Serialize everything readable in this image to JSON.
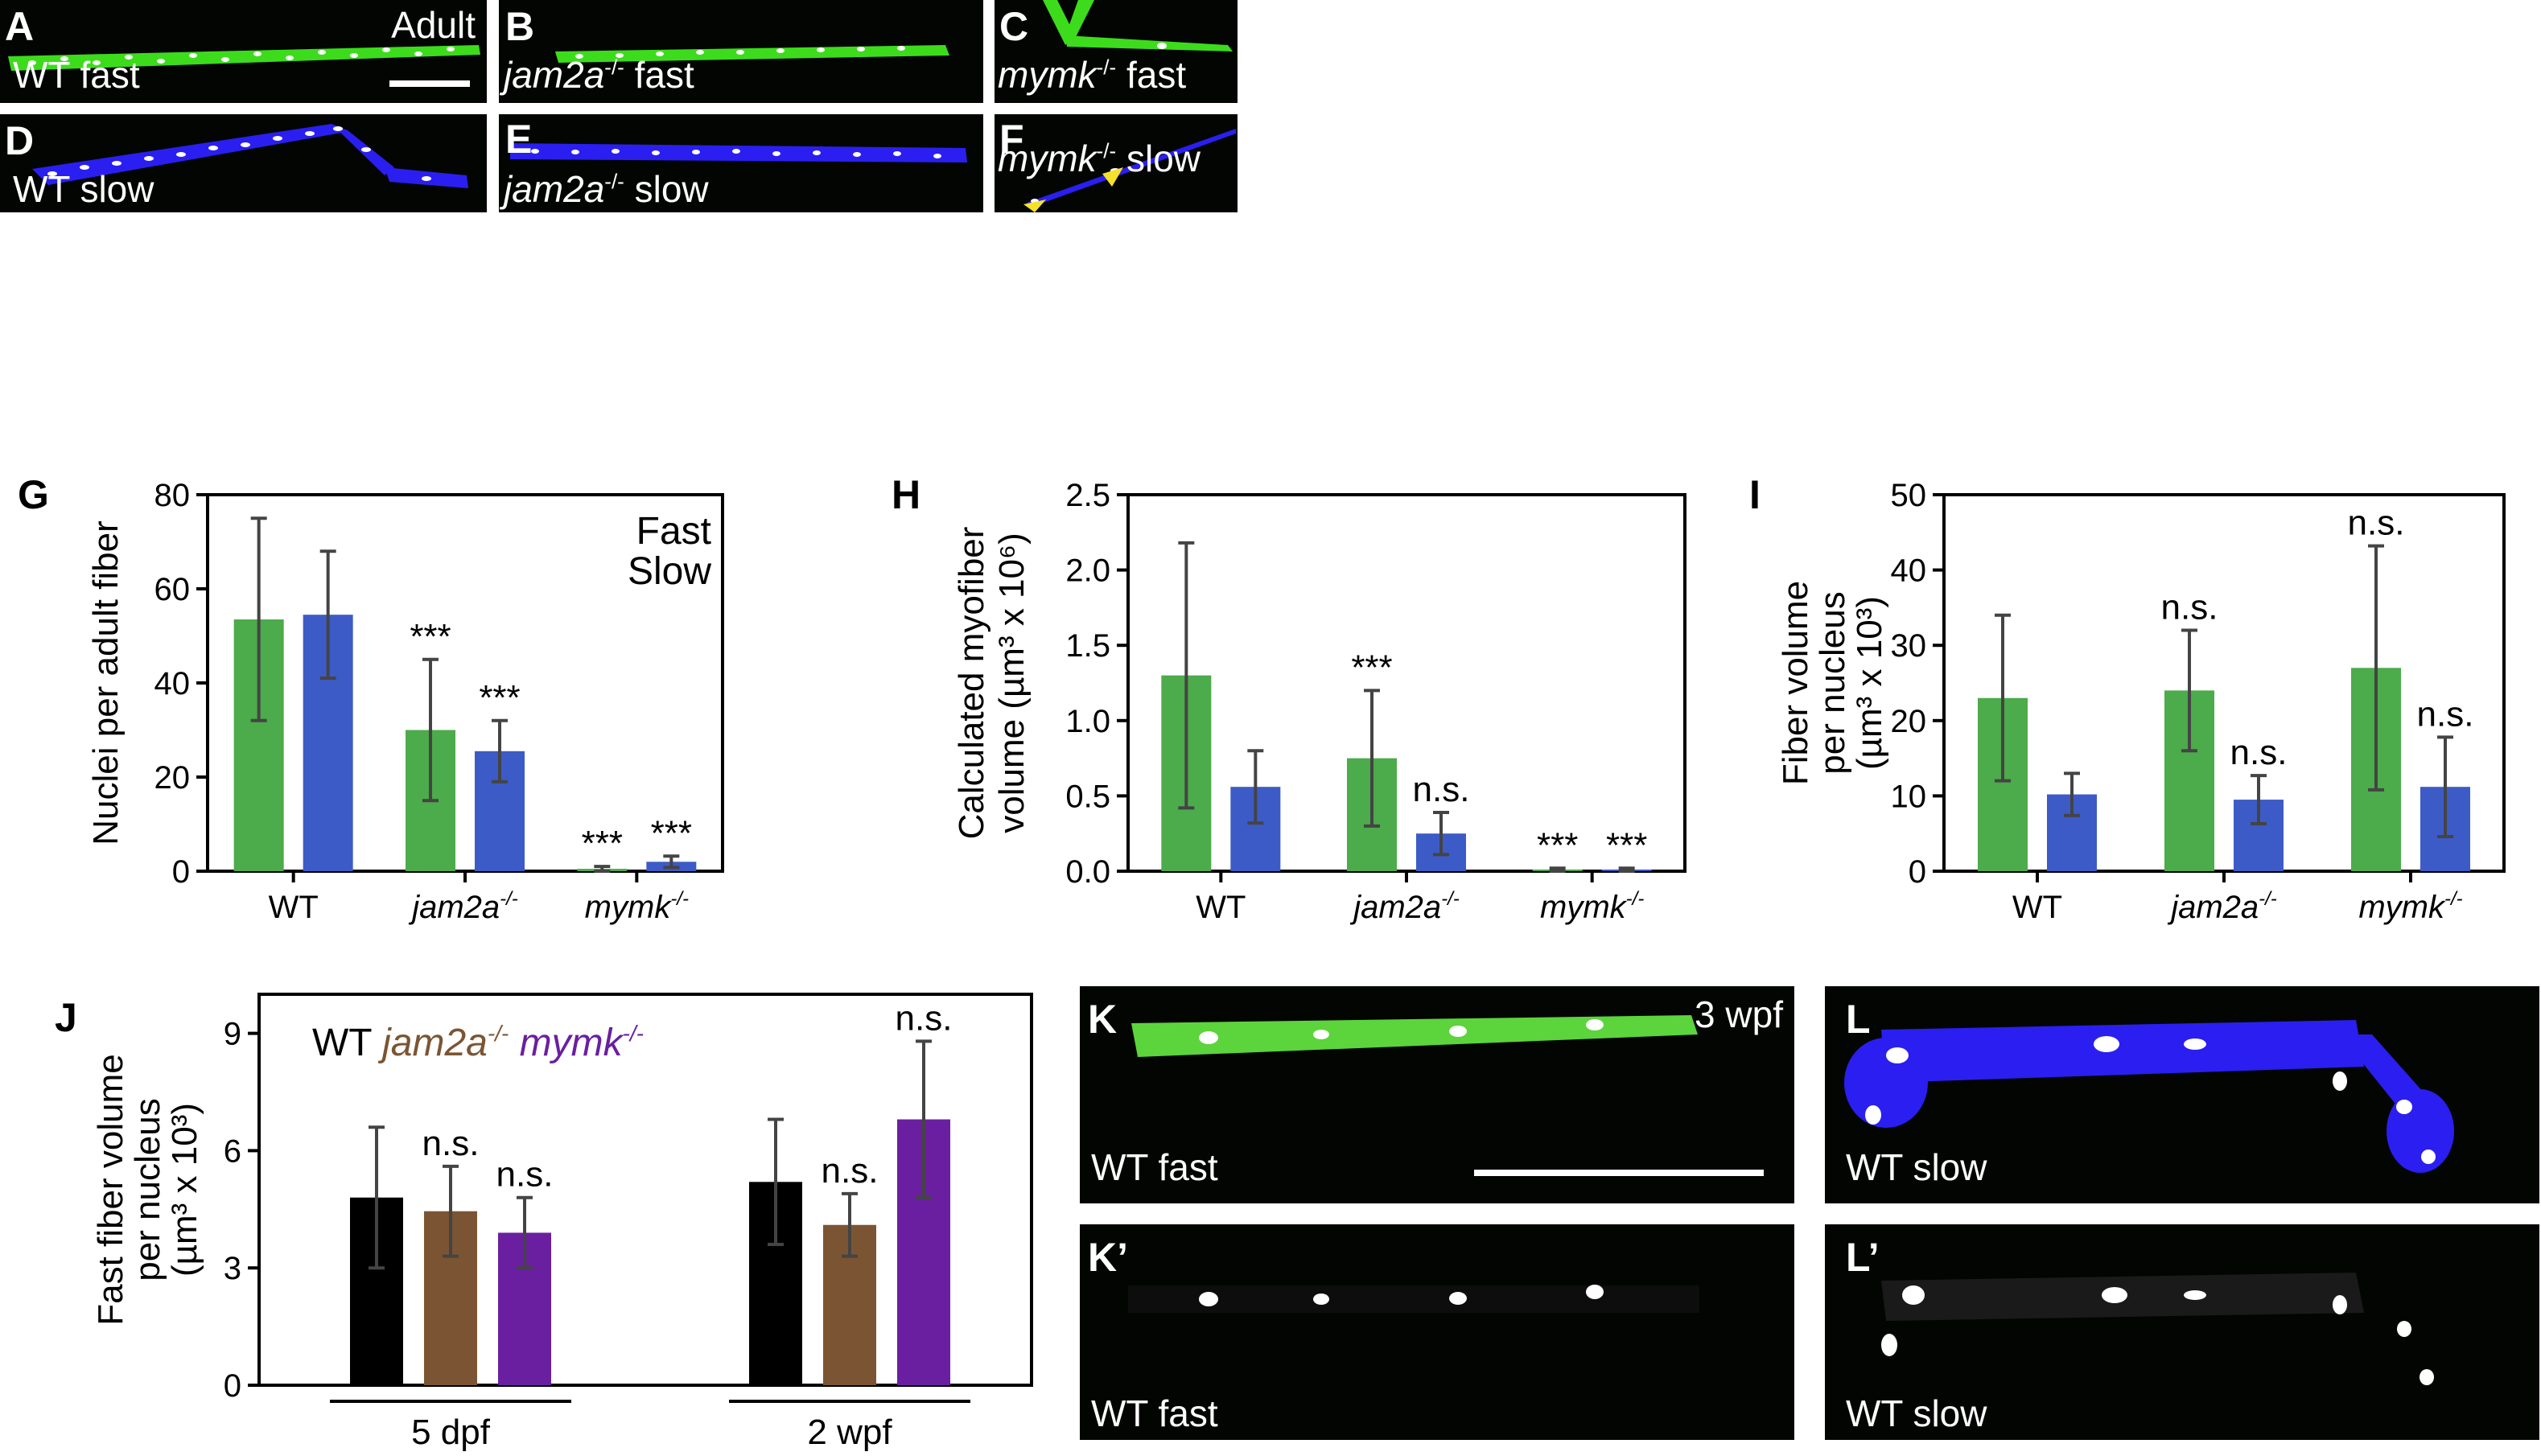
{
  "colors": {
    "fast": "#4cab4a",
    "slow": "#3d5bc6",
    "wt": "#000000",
    "jam2a": "#7b5533",
    "mymk": "#6a1fa0",
    "fiber_green": "#3cdc1c",
    "fiber_blue": "#2a1ff0",
    "nucleus": "#ffffff",
    "arrowhead": "#f6e12a"
  },
  "panels": {
    "A": {
      "label": "A",
      "caption": "WT fast",
      "corner": "Adult"
    },
    "B": {
      "label": "B",
      "caption_gene": "jam2a",
      "caption_sup": "-/-",
      "caption_rest": " fast"
    },
    "C": {
      "label": "C",
      "caption_gene": "mymk",
      "caption_sup": "-/-",
      "caption_rest": " fast"
    },
    "D": {
      "label": "D",
      "caption": "WT slow"
    },
    "E": {
      "label": "E",
      "caption_gene": "jam2a",
      "caption_sup": "-/-",
      "caption_rest": " slow"
    },
    "F": {
      "label": "F",
      "caption_gene": "mymk",
      "caption_sup": "-/-",
      "caption_rest": " slow"
    },
    "K": {
      "label": "K",
      "caption": "WT fast",
      "corner": "3 wpf"
    },
    "K2": {
      "label": "K’",
      "caption": "WT fast"
    },
    "L": {
      "label": "L",
      "caption": "WT slow"
    },
    "L2": {
      "label": "L’",
      "caption": "WT slow"
    }
  },
  "chart_data": [
    {
      "id": "G",
      "panel_label": "G",
      "type": "bar",
      "ylabel": "Nuclei per adult fiber",
      "ylim": [
        0,
        80
      ],
      "yticks": [
        0,
        20,
        40,
        60,
        80
      ],
      "categories": [
        "WT",
        "jam2a-/-",
        "mymk-/-"
      ],
      "legend": [
        "Fast",
        "Slow"
      ],
      "legend_placement": "top-right",
      "series": [
        {
          "name": "Fast",
          "values": [
            53.5,
            30,
            0.5
          ],
          "errors": [
            21.5,
            15,
            0.5
          ],
          "annotations": [
            "",
            "***",
            "***"
          ]
        },
        {
          "name": "Slow",
          "values": [
            54.5,
            25.5,
            2
          ],
          "errors": [
            13.5,
            6.5,
            1.2
          ],
          "annotations": [
            "",
            "***",
            "***"
          ]
        }
      ]
    },
    {
      "id": "H",
      "panel_label": "H",
      "type": "bar",
      "ylabel_line1": "Calculated myofiber",
      "ylabel_line2": "volume (µm³ x 10⁶)",
      "ylim": [
        0,
        2.5
      ],
      "yticks": [
        0.0,
        0.5,
        1.0,
        1.5,
        2.0,
        2.5
      ],
      "categories": [
        "WT",
        "jam2a-/-",
        "mymk-/-"
      ],
      "series": [
        {
          "name": "Fast",
          "values": [
            1.3,
            0.75,
            0.01
          ],
          "errors": [
            0.88,
            0.45,
            0.01
          ],
          "annotations": [
            "",
            "***",
            "***"
          ]
        },
        {
          "name": "Slow",
          "values": [
            0.56,
            0.25,
            0.01
          ],
          "errors": [
            0.24,
            0.14,
            0.01
          ],
          "annotations": [
            "",
            "n.s.",
            "***"
          ]
        }
      ]
    },
    {
      "id": "I",
      "panel_label": "I",
      "type": "bar",
      "ylabel_line1": "Fiber volume",
      "ylabel_line2": "per nucleus",
      "ylabel_line3": "(µm³ x 10³)",
      "ylim": [
        0,
        50
      ],
      "yticks": [
        0,
        10,
        20,
        30,
        40,
        50
      ],
      "categories": [
        "WT",
        "jam2a-/-",
        "mymk-/-"
      ],
      "series": [
        {
          "name": "Fast",
          "values": [
            23,
            24,
            27
          ],
          "errors": [
            11,
            8,
            16.2
          ],
          "annotations": [
            "",
            "n.s.",
            "n.s."
          ]
        },
        {
          "name": "Slow",
          "values": [
            10.2,
            9.5,
            11.2
          ],
          "errors": [
            2.8,
            3.2,
            6.6
          ],
          "annotations": [
            "",
            "n.s.",
            "n.s."
          ]
        }
      ]
    },
    {
      "id": "J",
      "panel_label": "J",
      "type": "bar",
      "ylabel_line1": "Fast fiber volume",
      "ylabel_line2": "per nucleus",
      "ylabel_line3": "(µm³ x 10³)",
      "ylim": [
        0,
        10
      ],
      "yticks": [
        0,
        3,
        6,
        9
      ],
      "groups": [
        "5 dpf",
        "2 wpf"
      ],
      "legend": [
        "WT",
        "jam2a-/-",
        "mymk-/-"
      ],
      "series": [
        {
          "name": "WT",
          "values": [
            4.8,
            5.2
          ],
          "errors": [
            1.8,
            1.6
          ],
          "annotations": [
            "",
            ""
          ]
        },
        {
          "name": "jam2a-/-",
          "values": [
            4.45,
            4.1
          ],
          "errors": [
            1.15,
            0.8
          ],
          "annotations": [
            "n.s.",
            "n.s."
          ]
        },
        {
          "name": "mymk-/-",
          "values": [
            3.9,
            6.8
          ],
          "errors": [
            0.9,
            2.0
          ],
          "annotations": [
            "n.s.",
            "n.s."
          ]
        }
      ]
    }
  ]
}
